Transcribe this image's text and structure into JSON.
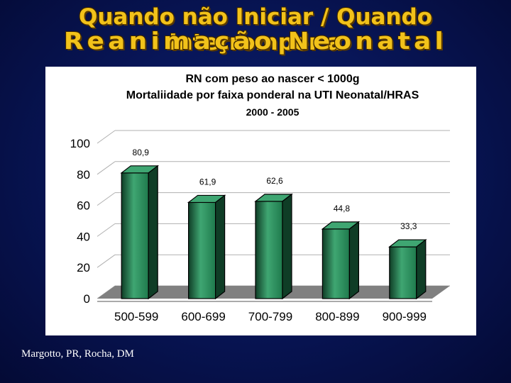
{
  "slide": {
    "title_line1": "Quando não Iniciar / Quando Interromper a",
    "title_line2": "Reanimação Neonatal",
    "credit": "Margotto, PR, Rocha, DM"
  },
  "colors": {
    "title": "#f2c21a",
    "bar_front": "#1f7a4d",
    "bar_light": "#3fa672",
    "bar_dark": "#0f3d26",
    "floor": "#808080"
  },
  "chart_data": {
    "type": "bar",
    "title_lines": [
      "RN com peso ao nascer < 1000g",
      "Mortaliidade por faixa ponderal na UTI Neonatal/HRAS",
      "2000 - 2005"
    ],
    "categories": [
      "500-599",
      "600-699",
      "700-799",
      "800-899",
      "900-999"
    ],
    "values": [
      80.9,
      61.9,
      62.6,
      44.8,
      33.3
    ],
    "data_labels": [
      "80,9",
      "61,9",
      "62,6",
      "44,8",
      "33,3"
    ],
    "yticks": [
      "0",
      "20",
      "40",
      "60",
      "80",
      "100"
    ],
    "ylim": [
      0,
      100
    ],
    "xlabel": "",
    "ylabel": "",
    "grid": true
  }
}
